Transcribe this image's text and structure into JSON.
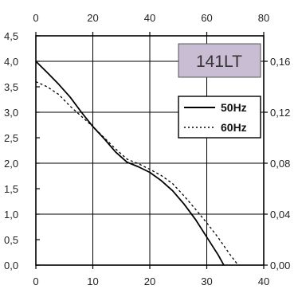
{
  "chart_data": {
    "type": "line",
    "model_label": "141LT",
    "colors": {
      "model_box_fill": "#c8bdd3",
      "line": "#000000"
    },
    "axes": {
      "bottom": {
        "ticks": [
          "0",
          "10",
          "20",
          "30",
          "40"
        ],
        "range": [
          0,
          40
        ]
      },
      "top": {
        "ticks": [
          "0",
          "20",
          "40",
          "60",
          "80"
        ],
        "range": [
          0,
          80
        ]
      },
      "left": {
        "ticks": [
          "0,0",
          "0,5",
          "1,0",
          "1,5",
          "2,0",
          "2,5",
          "3,0",
          "3,5",
          "4,0",
          "4,5"
        ],
        "range": [
          0,
          4.5
        ]
      },
      "right": {
        "ticks": [
          "0,00",
          "0,04",
          "0,08",
          "0,12",
          "0,16"
        ],
        "range": [
          0,
          0.18
        ]
      }
    },
    "grid": true,
    "legend_placement": "right",
    "series": [
      {
        "name": "50Hz",
        "style": "solid",
        "x": [
          0,
          2,
          4,
          6,
          8,
          10,
          12,
          14,
          16,
          18,
          20,
          22,
          24,
          26,
          28,
          30,
          32,
          33
        ],
        "y": [
          4.0,
          3.78,
          3.55,
          3.3,
          3.0,
          2.72,
          2.48,
          2.22,
          2.02,
          1.93,
          1.82,
          1.66,
          1.46,
          1.2,
          0.9,
          0.55,
          0.2,
          0.0
        ]
      },
      {
        "name": "60Hz",
        "style": "dotted",
        "x": [
          0,
          2,
          4,
          6,
          8,
          10,
          12,
          14,
          16,
          18,
          20,
          22,
          24,
          26,
          28,
          30,
          32,
          34,
          35.5
        ],
        "y": [
          3.6,
          3.5,
          3.35,
          3.12,
          2.92,
          2.72,
          2.5,
          2.28,
          2.08,
          1.99,
          1.88,
          1.76,
          1.6,
          1.36,
          1.1,
          0.83,
          0.54,
          0.22,
          0.0
        ]
      }
    ]
  }
}
